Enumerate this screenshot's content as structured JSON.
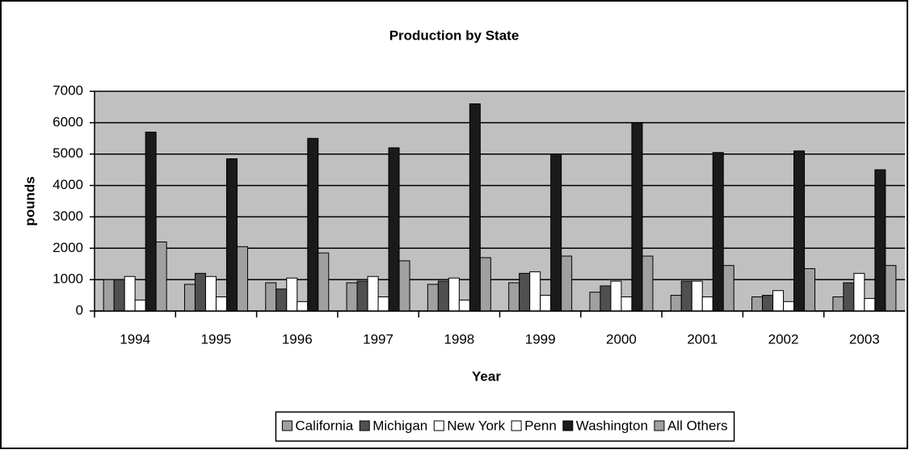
{
  "chart_data": {
    "type": "bar",
    "title": "Production by State",
    "xlabel": "Year",
    "ylabel": "pounds",
    "categories": [
      "1994",
      "1995",
      "1996",
      "1997",
      "1998",
      "1999",
      "2000",
      "2001",
      "2002",
      "2003"
    ],
    "series": [
      {
        "name": "California",
        "color": "#a0a0a0",
        "values": [
          1000,
          850,
          900,
          900,
          850,
          900,
          600,
          500,
          450,
          450
        ]
      },
      {
        "name": "Michigan",
        "color": "#505050",
        "values": [
          1000,
          1200,
          700,
          950,
          950,
          1200,
          800,
          950,
          500,
          900
        ]
      },
      {
        "name": "New York",
        "color": "#ffffff",
        "values": [
          1100,
          1100,
          1050,
          1100,
          1050,
          1250,
          950,
          950,
          650,
          1200
        ]
      },
      {
        "name": "Penn",
        "color": "#ffffff",
        "values": [
          350,
          450,
          300,
          450,
          350,
          500,
          450,
          450,
          300,
          400
        ]
      },
      {
        "name": "Washington",
        "color": "#1a1a1a",
        "values": [
          5700,
          4850,
          5500,
          5200,
          6600,
          5000,
          6000,
          5050,
          5100,
          4500
        ]
      },
      {
        "name": "All Others",
        "color": "#a0a0a0",
        "values": [
          2200,
          2050,
          1850,
          1600,
          1700,
          1750,
          1750,
          1450,
          1350,
          1450
        ]
      }
    ],
    "ylim": [
      0,
      7000
    ],
    "yticks": [
      0,
      1000,
      2000,
      3000,
      4000,
      5000,
      6000,
      7000
    ],
    "grid": true,
    "legend": "bottom"
  }
}
